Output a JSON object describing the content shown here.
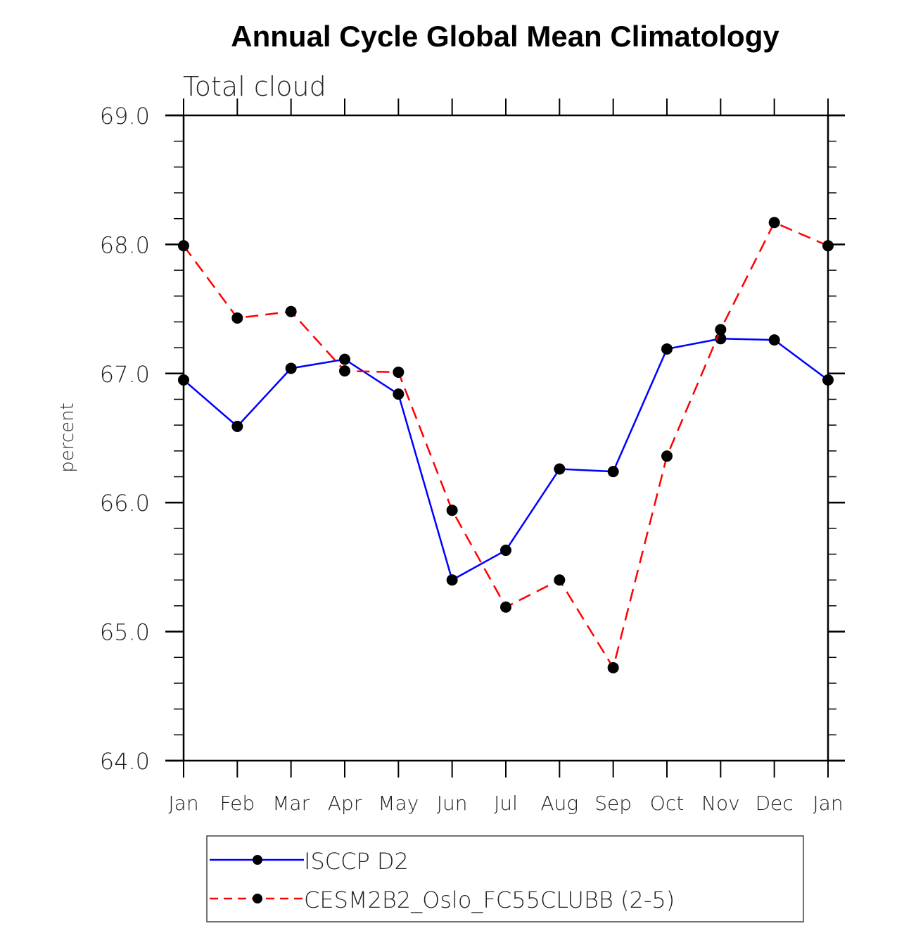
{
  "chart_data": {
    "type": "line",
    "title": "Annual Cycle Global Mean Climatology",
    "subtitle": "Total cloud",
    "xlabel": "",
    "ylabel": "percent",
    "categories": [
      "Jan",
      "Feb",
      "Mar",
      "Apr",
      "May",
      "Jun",
      "Jul",
      "Aug",
      "Sep",
      "Oct",
      "Nov",
      "Dec",
      "Jan"
    ],
    "ylim": [
      64.0,
      69.0
    ],
    "yticks": [
      "64.0",
      "65.0",
      "66.0",
      "67.0",
      "68.0",
      "69.0"
    ],
    "yminor_step": 0.2,
    "grid": false,
    "legend_position": "bottom",
    "series": [
      {
        "name": "ISCCP D2",
        "color": "#0000ff",
        "style": "solid",
        "marker": "filled-circle",
        "values": [
          66.95,
          66.59,
          67.04,
          67.11,
          66.84,
          65.4,
          65.63,
          66.26,
          66.24,
          67.19,
          67.27,
          67.26,
          66.95
        ]
      },
      {
        "name": "CESM2B2_Oslo_FC55CLUBB (2-5)",
        "color": "#ff0000",
        "style": "dashed",
        "marker": "filled-circle",
        "values": [
          67.99,
          67.43,
          67.48,
          67.02,
          67.01,
          65.94,
          65.19,
          65.4,
          64.72,
          66.36,
          67.34,
          68.17,
          67.99
        ]
      }
    ]
  }
}
